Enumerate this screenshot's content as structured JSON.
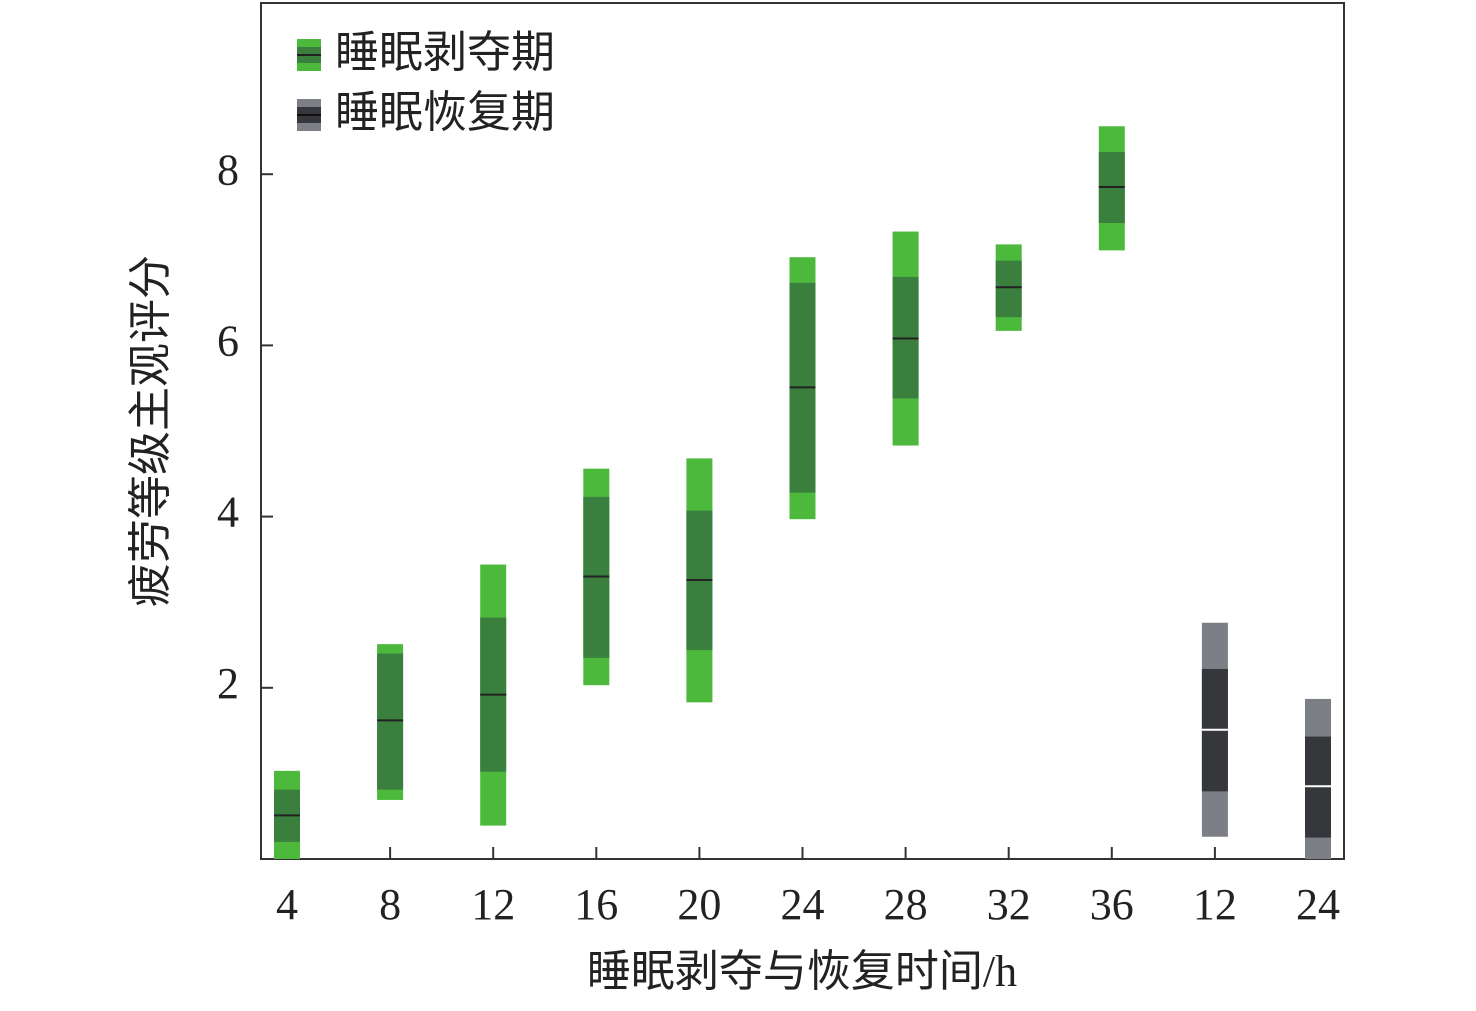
{
  "chart_data": {
    "type": "box",
    "x_label": "睡眠剥夺与恢复时间/h",
    "y_label": "疲劳等级主观评分",
    "categories": [
      "4",
      "8",
      "12",
      "16",
      "20",
      "24",
      "28",
      "32",
      "36",
      "12",
      "24"
    ],
    "ylim": [
      0,
      10
    ],
    "yticks": [
      2,
      4,
      6,
      8
    ],
    "legend": "upper left",
    "series": [
      {
        "name": "睡眠剥夺期",
        "color": "#4cb83c",
        "inner_color": "#3a7f3e",
        "median_color": "#222222",
        "values": [
          {
            "min": 0,
            "q1": 0.2,
            "median": 0.51,
            "q3": 0.81,
            "max": 1.03
          },
          {
            "min": 0.69,
            "q1": 0.81,
            "median": 1.62,
            "q3": 2.4,
            "max": 2.51
          },
          {
            "min": 0.39,
            "q1": 1.02,
            "median": 1.92,
            "q3": 2.82,
            "max": 3.44
          },
          {
            "min": 2.03,
            "q1": 2.35,
            "median": 3.3,
            "q3": 4.23,
            "max": 4.56
          },
          {
            "min": 1.83,
            "q1": 2.44,
            "median": 3.26,
            "q3": 4.07,
            "max": 4.68
          },
          {
            "min": 3.97,
            "q1": 4.28,
            "median": 5.51,
            "q3": 6.73,
            "max": 7.03
          },
          {
            "min": 4.83,
            "q1": 5.38,
            "median": 6.08,
            "q3": 6.8,
            "max": 7.33
          },
          {
            "min": 6.17,
            "q1": 6.33,
            "median": 6.68,
            "q3": 6.99,
            "max": 7.18
          },
          {
            "min": 7.11,
            "q1": 7.43,
            "median": 7.85,
            "q3": 8.26,
            "max": 8.56
          },
          null,
          null
        ]
      },
      {
        "name": "睡眠恢复期",
        "color": "#7c7f85",
        "inner_color": "#35373b",
        "median_color": "#ffffff",
        "values": [
          null,
          null,
          null,
          null,
          null,
          null,
          null,
          null,
          null,
          {
            "min": 0.26,
            "q1": 0.79,
            "median": 1.51,
            "q3": 2.22,
            "max": 2.76
          },
          {
            "min": 0,
            "q1": 0.25,
            "median": 0.85,
            "q3": 1.43,
            "max": 1.87
          }
        ]
      }
    ]
  }
}
